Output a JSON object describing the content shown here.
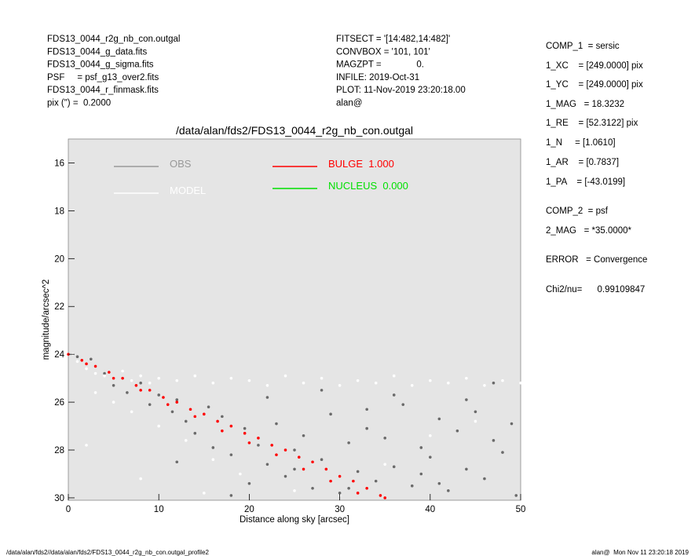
{
  "header": {
    "left": [
      "FDS13_0044_r2g_nb_con.outgal",
      "FDS13_0044_g_data.fits",
      "FDS13_0044_g_sigma.fits",
      "PSF     = psf_g13_over2.fits",
      "FDS13_0044_r_finmask.fits",
      "pix (\") =  0.2000"
    ],
    "middle": [
      "FITSECT = '[14:482,14:482]'",
      "CONVBOX = '101, 101'",
      "MAGZPT =              0.",
      "INFILE: 2019-Oct-31",
      "PLOT: 11-Nov-2019 23:20:18.00",
      "alan@"
    ],
    "right": [
      "COMP_1  = sersic",
      "1_XC    = [249.0000] pix",
      "1_YC    = [249.0000] pix",
      "1_MAG   = 18.3232",
      "1_RE    = [52.3122] pix",
      "1_N     = [1.0610]",
      "1_AR    = [0.7837]",
      "1_PA    = [-43.0199]",
      "COMP_2  = psf",
      "2_MAG   = *35.0000*",
      "ERROR   = Convergence",
      "Chi2/nu=      0.99109847"
    ]
  },
  "footer": {
    "left": "/data/alan/fds2//data/alan/fds2/FDS13_0044_r2g_nb_con.outgal_profile2",
    "right": "alan@  Mon Nov 11 23:20:18 2019"
  },
  "chart_data": {
    "type": "scatter",
    "title": "/data/alan/fds2/FDS13_0044_r2g_nb_con.outgal",
    "x_label": "Distance along sky [arcsec]",
    "y_label": "magnitude/arcsec^2",
    "xlim": [
      0,
      50
    ],
    "ylim": [
      30.1,
      15.0
    ],
    "xticks": [
      0,
      10,
      20,
      30,
      40,
      50
    ],
    "yticks": [
      16,
      18,
      20,
      22,
      24,
      26,
      28,
      30
    ],
    "series": [
      {
        "name": "OBS",
        "color": "#6a6a6a",
        "legend_color": "#999999",
        "x": [
          1,
          2.5,
          4,
          5,
          6.5,
          8,
          9,
          10,
          11.5,
          12,
          13,
          14,
          15.5,
          16,
          17,
          18,
          19.5,
          20,
          21,
          22,
          23,
          24,
          25,
          26,
          27,
          28,
          29,
          30,
          31,
          32,
          33,
          34,
          35,
          36,
          37,
          38,
          39,
          40,
          41,
          42,
          43,
          44,
          45,
          46,
          47,
          48,
          49,
          49.5,
          12,
          22,
          28,
          36,
          44,
          47,
          39,
          31,
          18,
          25,
          33,
          41
        ],
        "values": [
          24.1,
          24.2,
          24.8,
          25.3,
          25.6,
          25.2,
          26.1,
          25.7,
          26.4,
          25.9,
          26.8,
          27.3,
          26.2,
          27.9,
          26.6,
          28.2,
          27.1,
          29.4,
          27.8,
          28.6,
          26.9,
          29.1,
          28.0,
          27.4,
          29.6,
          28.4,
          26.5,
          29.8,
          27.7,
          28.9,
          26.3,
          29.3,
          27.5,
          28.7,
          26.1,
          29.5,
          27.9,
          28.3,
          26.7,
          29.7,
          27.2,
          28.8,
          26.4,
          29.2,
          27.6,
          28.1,
          26.9,
          29.9,
          28.5,
          25.8,
          25.5,
          25.7,
          25.9,
          25.2,
          29.0,
          29.6,
          29.9,
          28.8,
          27.1,
          29.4
        ]
      },
      {
        "name": "MODEL",
        "color": "#ffffff",
        "legend_color": "#ffffff",
        "x": [
          0.5,
          1,
          2,
          3,
          4,
          5,
          6,
          7,
          8,
          9,
          10,
          12,
          14,
          16,
          18,
          20,
          22,
          24,
          26,
          28,
          30,
          32,
          34,
          36,
          38,
          40,
          42,
          44,
          46,
          48,
          50,
          3,
          5,
          7,
          10,
          13,
          16,
          19,
          25,
          30,
          35,
          40,
          45,
          2,
          8,
          15
        ],
        "values": [
          24.0,
          24.3,
          24.6,
          24.8,
          24.9,
          25.0,
          24.7,
          25.1,
          24.9,
          25.2,
          25.0,
          25.1,
          24.9,
          25.2,
          25.0,
          25.1,
          25.3,
          24.9,
          25.2,
          25.0,
          25.3,
          25.1,
          25.2,
          24.9,
          25.3,
          25.1,
          25.2,
          25.0,
          25.3,
          25.1,
          25.2,
          25.6,
          26.0,
          26.4,
          27.0,
          27.6,
          28.4,
          29.0,
          29.7,
          29.9,
          28.6,
          27.4,
          26.8,
          27.8,
          29.2,
          29.8
        ]
      },
      {
        "name": "BULGE  1.000",
        "color": "#ff0000",
        "legend_color": "#ff0000",
        "x": [
          0,
          1.5,
          3,
          4.5,
          6,
          7.5,
          9,
          10.5,
          12,
          13.5,
          15,
          16.5,
          18,
          19.5,
          21,
          22.5,
          24,
          25.5,
          27,
          28.5,
          30,
          31.5,
          33,
          34.5,
          2,
          5,
          8,
          11,
          14,
          17,
          20,
          23,
          26,
          29,
          32,
          35
        ],
        "values": [
          24.0,
          24.25,
          24.5,
          24.75,
          25.0,
          25.3,
          25.5,
          25.8,
          26.0,
          26.3,
          26.5,
          26.8,
          27.0,
          27.3,
          27.5,
          27.8,
          28.0,
          28.3,
          28.5,
          28.8,
          29.1,
          29.3,
          29.6,
          29.9,
          24.4,
          25.0,
          25.5,
          26.1,
          26.6,
          27.2,
          27.7,
          28.2,
          28.8,
          29.3,
          29.8,
          30.0
        ]
      },
      {
        "name": "NUCLEUS  0.000",
        "color": "#00e000",
        "legend_color": "#00e000",
        "x": [],
        "values": []
      }
    ]
  }
}
